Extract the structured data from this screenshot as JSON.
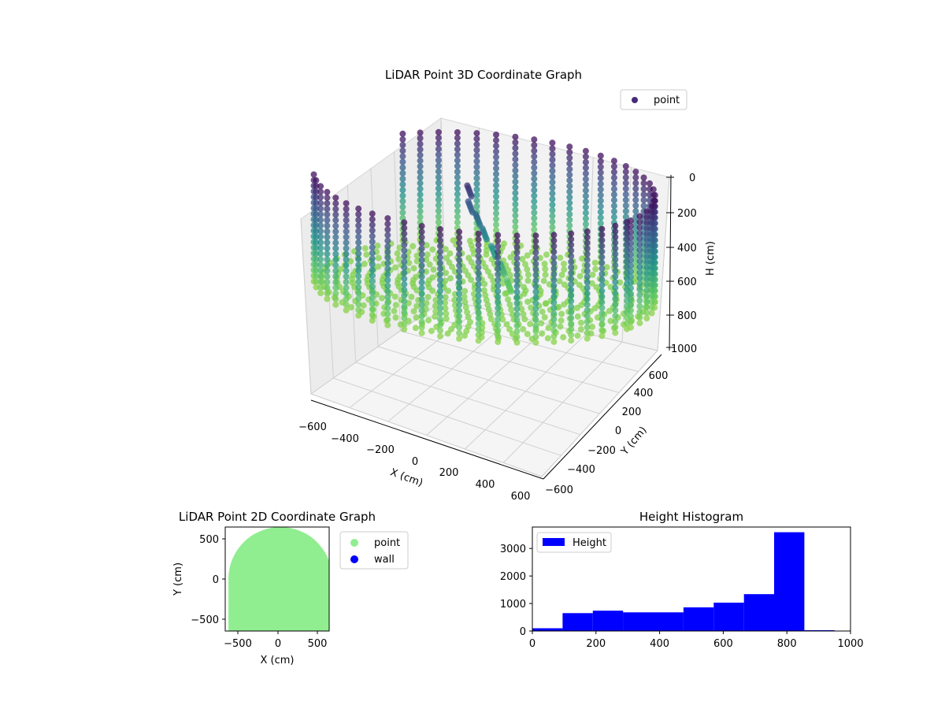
{
  "colors": {
    "point2d": "#90ee90",
    "wall": "#0000ff",
    "histogram": "#0000ff",
    "legend_point3d": "#472c7a",
    "viridis": [
      "#440154",
      "#3b528b",
      "#21918c",
      "#5ec962",
      "#c8e020"
    ]
  },
  "chart_data": [
    {
      "type": "scatter",
      "title": "LiDAR Point 3D Coordinate Graph",
      "xlabel": "X (cm)",
      "ylabel": "Y (cm)",
      "zlabel": "H (cm)",
      "xlim": [
        -650,
        650
      ],
      "ylim": [
        -650,
        650
      ],
      "zlim": [
        0,
        1000
      ],
      "z_inverted": true,
      "x_ticks": [
        "−600",
        "−400",
        "−200",
        "0",
        "200",
        "400",
        "600"
      ],
      "y_ticks": [
        "−600",
        "−400",
        "−200",
        "0",
        "200",
        "400",
        "600"
      ],
      "z_ticks": [
        "0",
        "200",
        "400",
        "600",
        "800",
        "1000"
      ],
      "legend": [
        "point"
      ],
      "legend_position": "upper-right",
      "colormap": "viridis",
      "structure": {
        "wall_radius_cm": 620,
        "wall_height_range_cm": [
          50,
          860
        ],
        "wall_open_arc_deg": [
          150,
          210
        ],
        "floor_height_cm": 820,
        "pole_points": [
          [
            -120,
            80,
            150
          ],
          [
            -110,
            70,
            260
          ],
          [
            -60,
            40,
            320
          ],
          [
            -20,
            20,
            400
          ],
          [
            30,
            0,
            500
          ],
          [
            80,
            -20,
            600
          ],
          [
            120,
            -40,
            700
          ]
        ]
      }
    },
    {
      "type": "scatter",
      "title": "LiDAR Point 2D Coordinate Graph",
      "xlabel": "X (cm)",
      "ylabel": "Y (cm)",
      "xlim": [
        -650,
        650
      ],
      "ylim": [
        -650,
        650
      ],
      "x_ticks": [
        "−500",
        "0",
        "500"
      ],
      "y_ticks": [
        "−500",
        "0",
        "500"
      ],
      "legend": [
        "point",
        "wall"
      ],
      "legend_position": "outside-right",
      "region": "filled half-disc of points, radius ≈ 650 cm, centred slightly right of origin"
    },
    {
      "type": "bar",
      "title": "Height Histogram",
      "xlabel": "",
      "ylabel": "",
      "series": [
        {
          "name": "Height",
          "bin_edges": [
            0,
            95,
            190,
            285,
            380,
            475,
            570,
            665,
            760,
            855,
            950
          ],
          "values": [
            100,
            650,
            740,
            680,
            680,
            860,
            1030,
            1340,
            3590,
            30
          ]
        }
      ],
      "xlim": [
        0,
        1000
      ],
      "ylim": [
        0,
        3780
      ],
      "x_ticks": [
        "0",
        "200",
        "400",
        "600",
        "800",
        "1000"
      ],
      "y_ticks": [
        "0",
        "1000",
        "2000",
        "3000"
      ],
      "legend_position": "upper-left"
    }
  ]
}
